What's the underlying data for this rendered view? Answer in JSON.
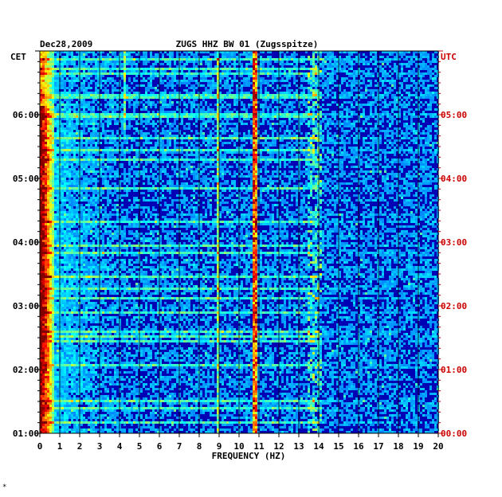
{
  "chart_data": {
    "type": "heatmap",
    "title_left": "Dec28,2009",
    "title_center": "ZUGS HHZ BW 01 (Zugsspitze)",
    "left_axis_tz": "CET",
    "right_axis_tz": "UTC",
    "xlabel": "FREQUENCY (HZ)",
    "xlim": [
      0,
      20
    ],
    "x_ticks": [
      "0",
      "1",
      "2",
      "3",
      "4",
      "5",
      "6",
      "7",
      "8",
      "9",
      "10",
      "11",
      "12",
      "13",
      "14",
      "15",
      "16",
      "17",
      "18",
      "19",
      "20"
    ],
    "left_time_labels": [
      "06:00",
      "05:00",
      "04:00",
      "03:00",
      "02:00",
      "01:00"
    ],
    "right_time_labels": [
      "05:00",
      "04:00",
      "03:00",
      "02:00",
      "01:00",
      "00:00"
    ],
    "time_range_hours_cet": [
      1.0,
      7.0
    ],
    "features": [
      {
        "freq": 0.35,
        "desc": "strong low-frequency noise band"
      },
      {
        "freq": 4.25,
        "desc": "weak narrow line"
      },
      {
        "freq": 8.9,
        "desc": "narrow spectral line"
      },
      {
        "freq": 10.7,
        "desc": "strong persistent spectral line"
      },
      {
        "freq": 13.7,
        "desc": "intermittent band"
      }
    ],
    "colors": {
      "background": "#0000b4",
      "accent": "#cc0000"
    }
  },
  "footer_mark": "*"
}
